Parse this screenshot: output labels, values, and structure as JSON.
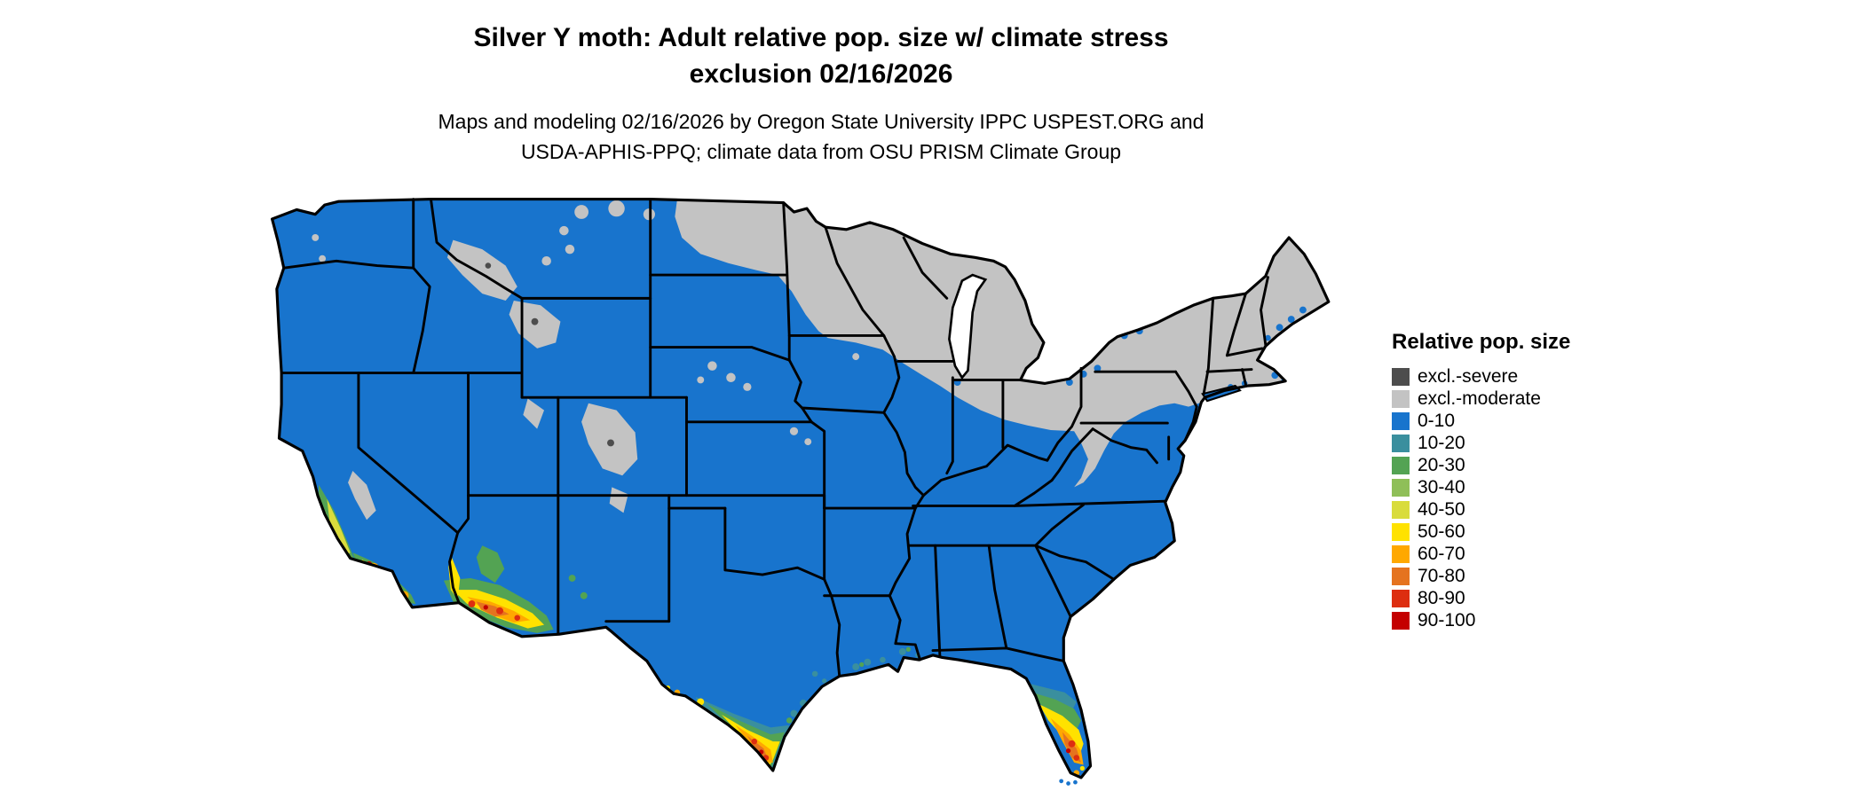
{
  "title": {
    "line1": "Silver Y moth: Adult relative pop. size w/ climate stress",
    "line2": "exclusion 02/16/2026"
  },
  "subtitle": {
    "line1": "Maps and modeling 02/16/2026 by Oregon State University IPPC USPEST.ORG and",
    "line2": "USDA-APHIS-PPQ; climate data from OSU PRISM Climate Group"
  },
  "legend": {
    "title": "Relative pop. size",
    "entries": [
      {
        "label": "excl.-severe",
        "color": "#4d4d4d"
      },
      {
        "label": "excl.-moderate",
        "color": "#c3c3c3"
      },
      {
        "label": "0-10",
        "color": "#1874cd"
      },
      {
        "label": "10-20",
        "color": "#3a8f9e"
      },
      {
        "label": "20-30",
        "color": "#53a353"
      },
      {
        "label": "30-40",
        "color": "#8fbf58"
      },
      {
        "label": "40-50",
        "color": "#d9dc3c"
      },
      {
        "label": "50-60",
        "color": "#ffe200"
      },
      {
        "label": "60-70",
        "color": "#ffa800"
      },
      {
        "label": "70-80",
        "color": "#e5731f"
      },
      {
        "label": "80-90",
        "color": "#dd2e10"
      },
      {
        "label": "90-100",
        "color": "#c40000"
      }
    ]
  }
}
